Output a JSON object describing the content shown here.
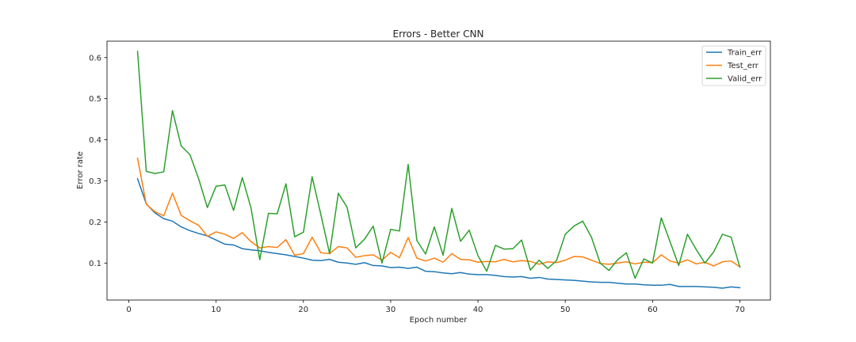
{
  "chart_data": {
    "type": "line",
    "title": "Errors - Better CNN",
    "xlabel": "Epoch number",
    "ylabel": "Error rate",
    "xlim": [
      -2.5,
      73.5
    ],
    "ylim": [
      0.01,
      0.64
    ],
    "xticks": [
      0,
      10,
      20,
      30,
      40,
      50,
      60,
      70
    ],
    "yticks": [
      0.1,
      0.2,
      0.3,
      0.4,
      0.5,
      0.6
    ],
    "ytick_labels": [
      "0.1",
      "0.2",
      "0.3",
      "0.4",
      "0.5",
      "0.6"
    ],
    "grid": false,
    "legend_position": "top-right",
    "x": [
      1,
      2,
      3,
      4,
      5,
      6,
      7,
      8,
      9,
      10,
      11,
      12,
      13,
      14,
      15,
      16,
      17,
      18,
      19,
      20,
      21,
      22,
      23,
      24,
      25,
      26,
      27,
      28,
      29,
      30,
      31,
      32,
      33,
      34,
      35,
      36,
      37,
      38,
      39,
      40,
      41,
      42,
      43,
      44,
      45,
      46,
      47,
      48,
      49,
      50,
      51,
      52,
      53,
      54,
      55,
      56,
      57,
      58,
      59,
      60,
      61,
      62,
      63,
      64,
      65,
      66,
      67,
      68,
      69,
      70
    ],
    "series": [
      {
        "name": "Train_err",
        "color": "#1f77b4",
        "values": [
          0.305,
          0.244,
          0.222,
          0.208,
          0.202,
          0.188,
          0.179,
          0.172,
          0.166,
          0.156,
          0.146,
          0.144,
          0.135,
          0.132,
          0.13,
          0.126,
          0.123,
          0.12,
          0.116,
          0.112,
          0.107,
          0.106,
          0.109,
          0.102,
          0.1,
          0.097,
          0.101,
          0.094,
          0.093,
          0.089,
          0.09,
          0.087,
          0.09,
          0.08,
          0.079,
          0.076,
          0.074,
          0.077,
          0.073,
          0.072,
          0.072,
          0.07,
          0.067,
          0.066,
          0.067,
          0.063,
          0.065,
          0.061,
          0.06,
          0.059,
          0.058,
          0.056,
          0.054,
          0.053,
          0.053,
          0.051,
          0.049,
          0.049,
          0.047,
          0.046,
          0.046,
          0.048,
          0.043,
          0.043,
          0.043,
          0.042,
          0.041,
          0.039,
          0.042,
          0.04
        ]
      },
      {
        "name": "Test_err",
        "color": "#ff7f0e",
        "values": [
          0.355,
          0.243,
          0.225,
          0.215,
          0.27,
          0.216,
          0.203,
          0.192,
          0.165,
          0.176,
          0.17,
          0.16,
          0.174,
          0.152,
          0.137,
          0.14,
          0.138,
          0.157,
          0.119,
          0.123,
          0.163,
          0.125,
          0.123,
          0.14,
          0.137,
          0.114,
          0.118,
          0.12,
          0.107,
          0.126,
          0.113,
          0.162,
          0.112,
          0.105,
          0.112,
          0.102,
          0.123,
          0.109,
          0.108,
          0.102,
          0.104,
          0.103,
          0.109,
          0.103,
          0.106,
          0.104,
          0.097,
          0.103,
          0.101,
          0.107,
          0.116,
          0.115,
          0.107,
          0.099,
          0.097,
          0.1,
          0.103,
          0.098,
          0.102,
          0.101,
          0.12,
          0.105,
          0.1,
          0.108,
          0.098,
          0.102,
          0.093,
          0.103,
          0.105,
          0.091
        ]
      },
      {
        "name": "Valid_err",
        "color": "#2ca02c",
        "values": [
          0.615,
          0.323,
          0.318,
          0.322,
          0.471,
          0.385,
          0.364,
          0.305,
          0.235,
          0.287,
          0.29,
          0.228,
          0.308,
          0.234,
          0.108,
          0.221,
          0.22,
          0.293,
          0.164,
          0.175,
          0.31,
          0.218,
          0.123,
          0.27,
          0.236,
          0.137,
          0.158,
          0.19,
          0.1,
          0.182,
          0.178,
          0.34,
          0.155,
          0.122,
          0.188,
          0.119,
          0.233,
          0.153,
          0.18,
          0.118,
          0.08,
          0.143,
          0.134,
          0.135,
          0.156,
          0.083,
          0.107,
          0.087,
          0.106,
          0.17,
          0.19,
          0.202,
          0.163,
          0.1,
          0.082,
          0.108,
          0.125,
          0.063,
          0.11,
          0.1,
          0.21,
          0.152,
          0.094,
          0.17,
          0.133,
          0.1,
          0.127,
          0.17,
          0.163,
          0.09
        ]
      }
    ]
  }
}
